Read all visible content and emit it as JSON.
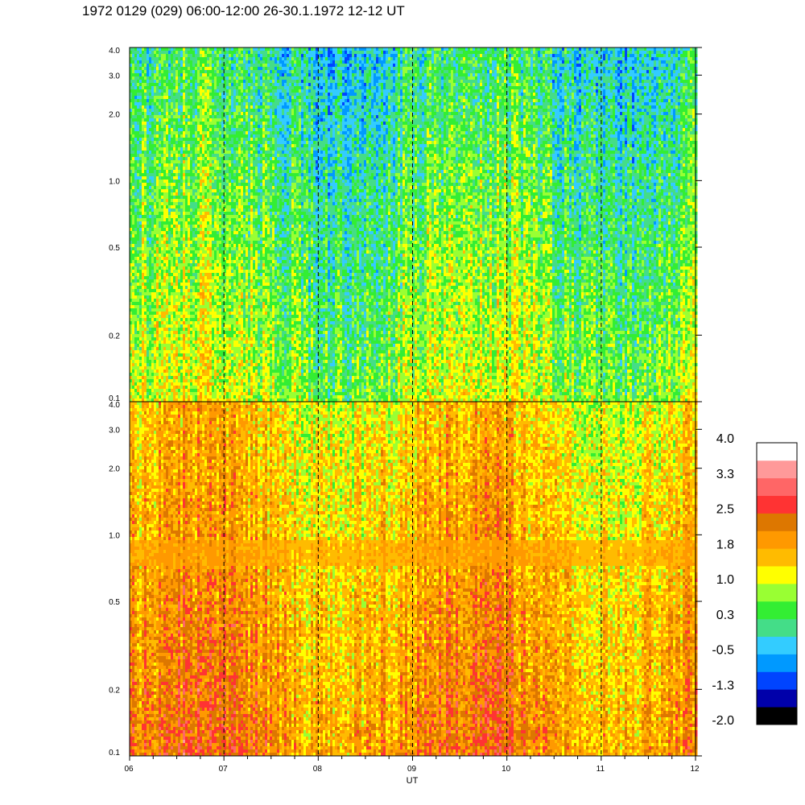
{
  "title": "1972 0129 (029) 06:00-12:00 26-30.1.1972  12-12 UT",
  "chart_data": {
    "type": "heatmap",
    "panels": [
      {
        "name": "",
        "mean_level": 0.3,
        "band_levels": []
      },
      {
        "name": "",
        "mean_level": 1.6,
        "band_levels": [
          {
            "freq": 0.85,
            "level": 1.8
          }
        ]
      }
    ],
    "x": {
      "label": "UT",
      "range": [
        6,
        12
      ],
      "ticks": [
        "06",
        "07",
        "08",
        "09",
        "10",
        "11",
        "12"
      ],
      "gridlines": [
        "07",
        "08",
        "09",
        "10",
        "11"
      ]
    },
    "y": {
      "scale": "log",
      "range": [
        0.1,
        4.0
      ],
      "ticks": [
        "0.1",
        "0.2",
        "0.5",
        "1.0",
        "2.0",
        "3.0",
        "4.0"
      ]
    },
    "colorbar": {
      "min": -2.0,
      "max": 4.0,
      "labels": [
        "4.0",
        "3.3",
        "2.5",
        "1.8",
        "1.0",
        "0.3",
        "-0.5",
        "-1.3",
        "-2.0"
      ],
      "colors": [
        "#000000",
        "#0000aa",
        "#0044ff",
        "#0099ff",
        "#33ccff",
        "#44dd88",
        "#33ee33",
        "#99ff33",
        "#ffff00",
        "#ffbb00",
        "#ff9900",
        "#dd7700",
        "#ff3333",
        "#ff6666",
        "#ff9999",
        "#ffffff"
      ]
    }
  }
}
